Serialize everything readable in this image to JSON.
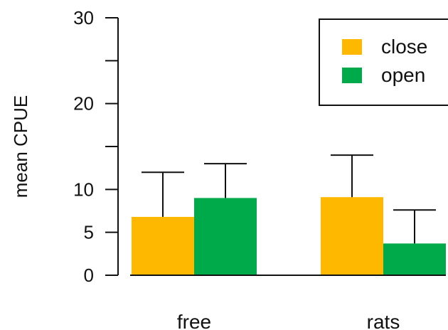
{
  "chart_data": {
    "type": "bar",
    "ylabel": "mean CPUE",
    "xlabel": "",
    "ylim": [
      0,
      30
    ],
    "yticks": [
      0,
      5,
      10,
      20,
      30
    ],
    "minor_yticks": [
      15,
      25
    ],
    "categories": [
      "free",
      "rats"
    ],
    "series": [
      {
        "name": "close",
        "color": "#FFB800",
        "values": [
          6.8,
          9.1
        ],
        "errors_upper": [
          12.0,
          14.0
        ]
      },
      {
        "name": "open",
        "color": "#00AA4A",
        "values": [
          9.0,
          3.7
        ],
        "errors_upper": [
          13.0,
          7.6
        ]
      }
    ],
    "legend_position": "top-right",
    "grid": false
  }
}
